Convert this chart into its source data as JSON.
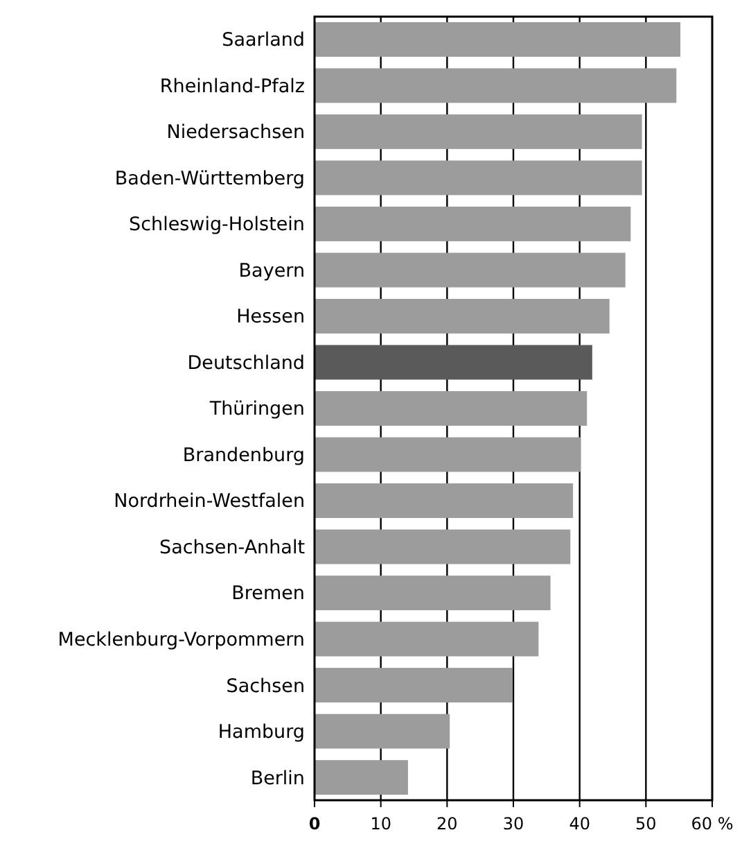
{
  "chart_data": {
    "type": "bar",
    "orientation": "horizontal",
    "categories": [
      "Saarland",
      "Rheinland-Pfalz",
      "Niedersachsen",
      "Baden-Württemberg",
      "Schleswig-Holstein",
      "Bayern",
      "Hessen",
      "Deutschland",
      "Thüringen",
      "Brandenburg",
      "Nordrhein-Westfalen",
      "Sachsen-Anhalt",
      "Bremen",
      "Mecklenburg-Vorpommern",
      "Sachsen",
      "Hamburg",
      "Berlin"
    ],
    "values": [
      55.2,
      54.6,
      49.4,
      49.4,
      47.7,
      46.9,
      44.5,
      41.9,
      41.1,
      40.2,
      39.0,
      38.6,
      35.6,
      33.8,
      29.9,
      20.4,
      14.1
    ],
    "colors": [
      "#9c9c9c",
      "#9c9c9c",
      "#9c9c9c",
      "#9c9c9c",
      "#9c9c9c",
      "#9c9c9c",
      "#9c9c9c",
      "#5a5a5a",
      "#9c9c9c",
      "#9c9c9c",
      "#9c9c9c",
      "#9c9c9c",
      "#9c9c9c",
      "#9c9c9c",
      "#9c9c9c",
      "#9c9c9c",
      "#9c9c9c"
    ],
    "xlim": [
      0,
      60
    ],
    "xticks": [
      0,
      10,
      20,
      30,
      40,
      50,
      {
        "value": 60,
        "label": "60 %"
      }
    ],
    "grid": "x"
  }
}
